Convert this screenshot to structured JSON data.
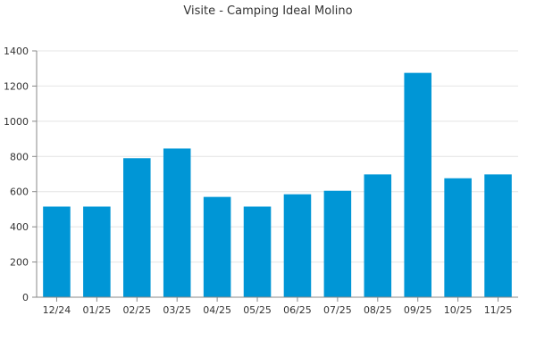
{
  "chart_data": {
    "type": "bar",
    "title": "Visite - Camping Ideal Molino",
    "xlabel": "",
    "ylabel": "",
    "categories": [
      "12/24",
      "01/25",
      "02/25",
      "03/25",
      "04/25",
      "05/25",
      "06/25",
      "07/25",
      "08/25",
      "09/25",
      "10/25",
      "11/25"
    ],
    "values": [
      515,
      515,
      790,
      845,
      570,
      515,
      585,
      605,
      698,
      1275,
      676,
      698
    ],
    "ylim": [
      0,
      1400
    ],
    "yticks": [
      0,
      200,
      400,
      600,
      800,
      1000,
      1200,
      1400
    ],
    "grid": true,
    "legend": "none",
    "colors": {
      "bar": "#0096d6",
      "grid": "#e4e4e4",
      "axis": "#888888",
      "text": "#333333"
    }
  }
}
